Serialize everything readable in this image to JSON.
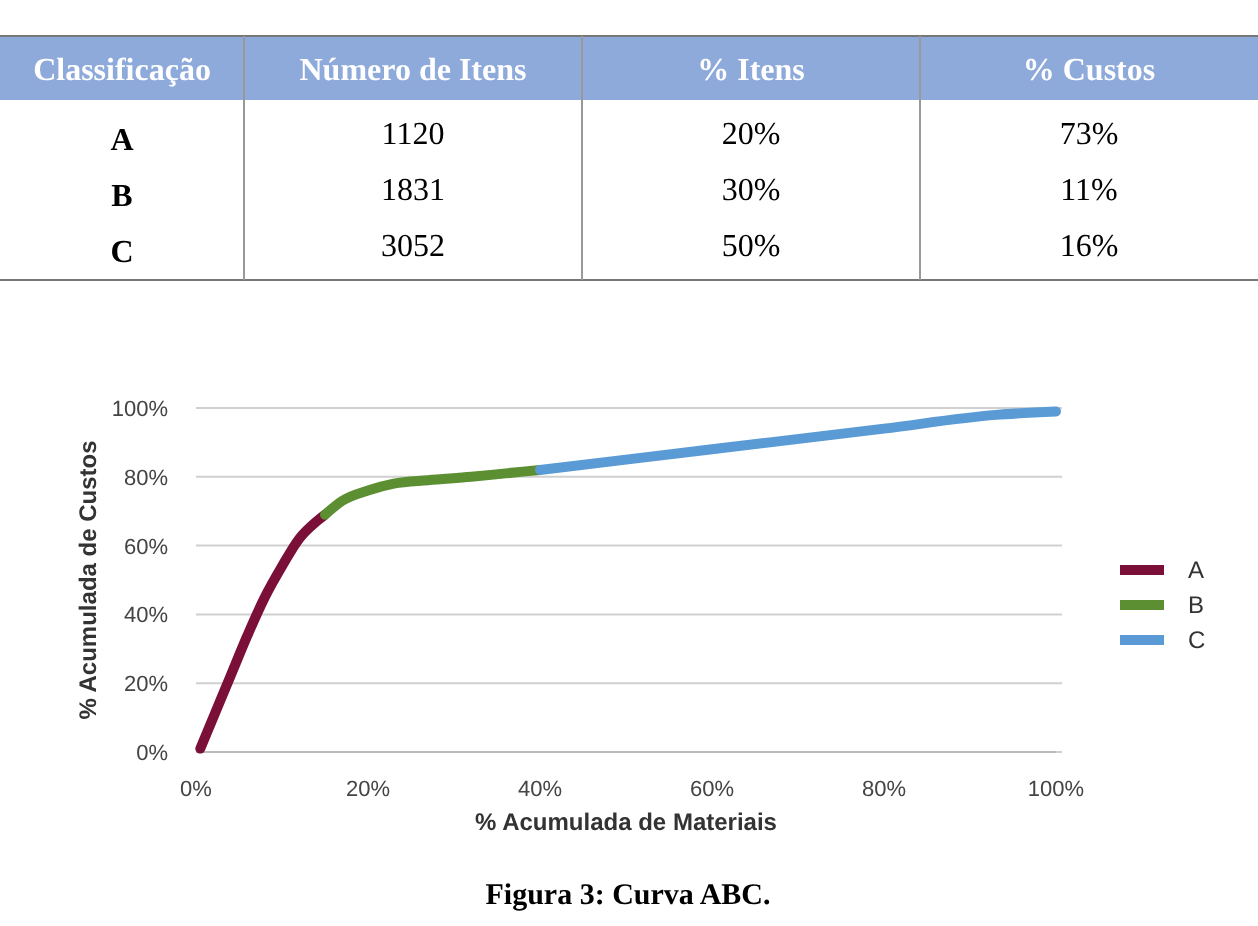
{
  "chart_data": [
    {
      "type": "other",
      "xlabel": "Classificação",
      "categories": [
        "A",
        "B",
        "C"
      ],
      "series": [
        {
          "name": "Número de Itens",
          "values": [
            1120,
            1831,
            3052
          ]
        },
        {
          "name": "% Itens",
          "values": [
            20,
            30,
            50
          ],
          "value_labels": [
            "20%",
            "30%",
            "50%"
          ]
        },
        {
          "name": "% Custos",
          "values": [
            73,
            11,
            16
          ],
          "value_labels": [
            "73%",
            "11%",
            "16%"
          ]
        }
      ],
      "data_labels": true
    },
    {
      "type": "line",
      "title": "Figura 3: Curva ABC.",
      "xlabel": "% Acumulada de Materiais",
      "ylabel": "% Acumulada de Custos",
      "xlim": [
        0,
        100
      ],
      "ylim": [
        0,
        100
      ],
      "xticks": [
        {
          "value": 0,
          "label": "0%"
        },
        {
          "value": 20,
          "label": "20%"
        },
        {
          "value": 40,
          "label": "40%"
        },
        {
          "value": 60,
          "label": "60%"
        },
        {
          "value": 80,
          "label": "80%"
        },
        {
          "value": 100,
          "label": "100%"
        }
      ],
      "yticks": [
        {
          "value": 0,
          "label": "0%"
        },
        {
          "value": 20,
          "label": "20%"
        },
        {
          "value": 40,
          "label": "40%"
        },
        {
          "value": 60,
          "label": "60%"
        },
        {
          "value": 80,
          "label": "80%"
        },
        {
          "value": 100,
          "label": "100%"
        }
      ],
      "grid": "y",
      "legend": "right",
      "marker": "none",
      "series": [
        {
          "name": "A",
          "color": "#7a1038",
          "x": [
            0.5,
            2,
            4,
            6,
            8,
            10,
            12,
            14,
            15
          ],
          "values": [
            1,
            10,
            22,
            34,
            45,
            54,
            62,
            67,
            69
          ]
        },
        {
          "name": "B",
          "color": "#5b8f32",
          "x": [
            15,
            17,
            20,
            23,
            27,
            32,
            36,
            40
          ],
          "values": [
            69,
            73,
            76,
            78,
            79,
            80,
            81,
            82
          ]
        },
        {
          "name": "C",
          "color": "#5a9bd5",
          "x": [
            40,
            60,
            80,
            93,
            100
          ],
          "values": [
            82,
            88,
            94,
            98,
            99
          ]
        }
      ]
    }
  ]
}
